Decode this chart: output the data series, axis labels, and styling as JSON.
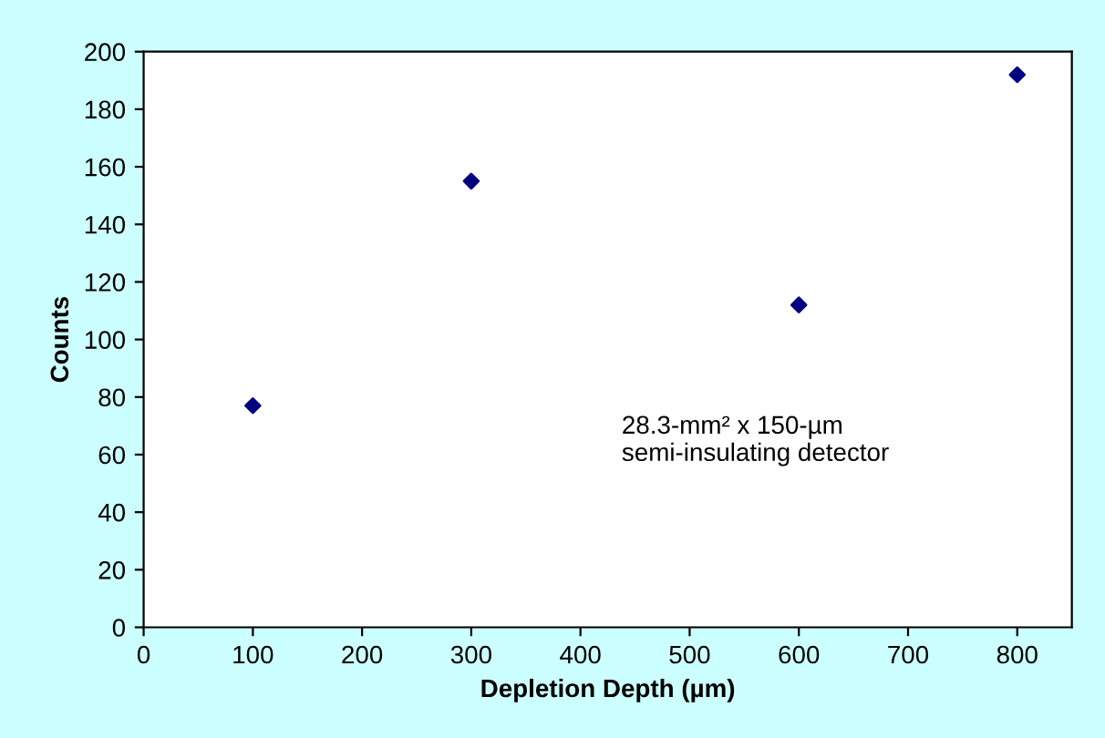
{
  "chart_data": {
    "type": "scatter",
    "xlabel": "Depletion Depth (µm)",
    "ylabel": "Counts",
    "x": [
      100,
      300,
      600,
      800
    ],
    "series": [
      {
        "color": "#000080",
        "values": [
          77,
          155,
          112,
          192
        ]
      }
    ],
    "xlim": [
      0,
      850
    ],
    "xticks": [
      0,
      100,
      200,
      300,
      400,
      500,
      600,
      700,
      800
    ],
    "ylim": [
      0,
      200
    ],
    "yticks": [
      0,
      20,
      40,
      60,
      80,
      100,
      120,
      140,
      160,
      180,
      200
    ],
    "marker": "diamond",
    "grid": false,
    "legend": false,
    "annotations": [
      "28.3-mm² x 150-µm\nsemi-insulating detector"
    ]
  }
}
